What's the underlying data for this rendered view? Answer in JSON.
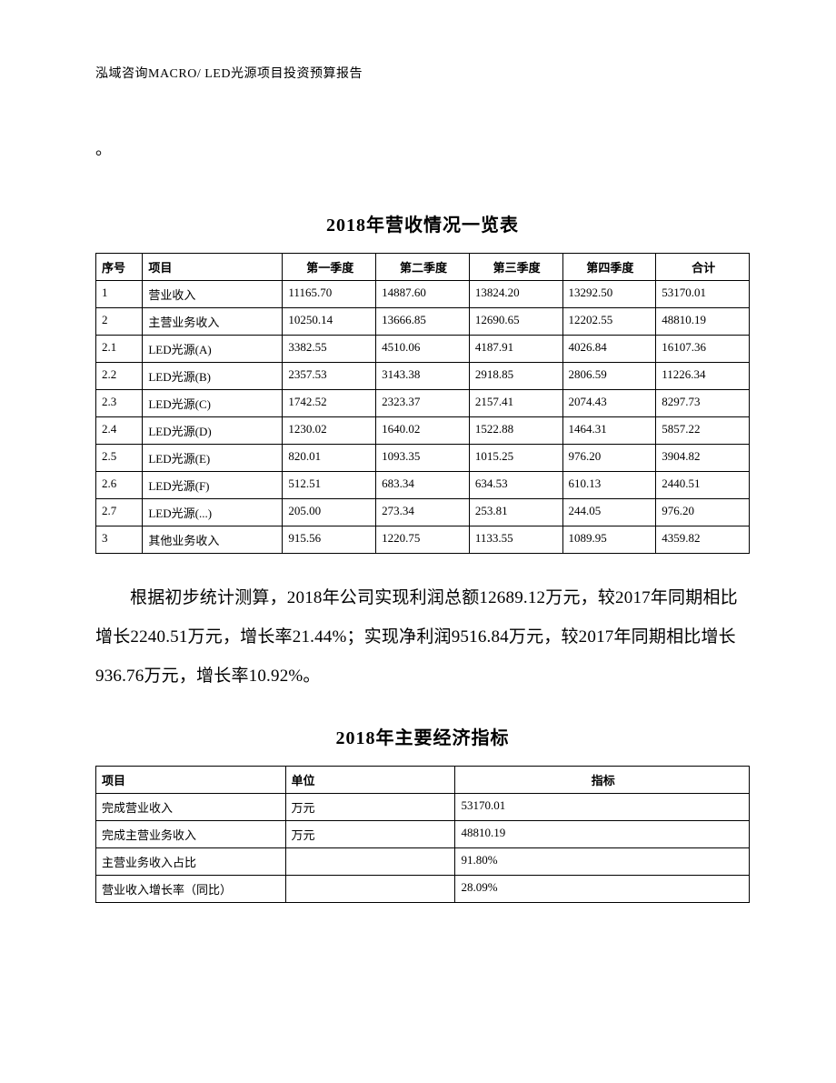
{
  "header": "泓域咨询MACRO/   LED光源项目投资预算报告",
  "stray": "。",
  "table1": {
    "title": "2018年营收情况一览表",
    "columns": [
      "序号",
      "项目",
      "第一季度",
      "第二季度",
      "第三季度",
      "第四季度",
      "合计"
    ],
    "rows": [
      [
        "1",
        "营业收入",
        "11165.70",
        "14887.60",
        "13824.20",
        "13292.50",
        "53170.01"
      ],
      [
        "2",
        "主营业务收入",
        "10250.14",
        "13666.85",
        "12690.65",
        "12202.55",
        "48810.19"
      ],
      [
        "2.1",
        "LED光源(A)",
        "3382.55",
        "4510.06",
        "4187.91",
        "4026.84",
        "16107.36"
      ],
      [
        "2.2",
        "LED光源(B)",
        "2357.53",
        "3143.38",
        "2918.85",
        "2806.59",
        "11226.34"
      ],
      [
        "2.3",
        "LED光源(C)",
        "1742.52",
        "2323.37",
        "2157.41",
        "2074.43",
        "8297.73"
      ],
      [
        "2.4",
        "LED光源(D)",
        "1230.02",
        "1640.02",
        "1522.88",
        "1464.31",
        "5857.22"
      ],
      [
        "2.5",
        "LED光源(E)",
        "820.01",
        "1093.35",
        "1015.25",
        "976.20",
        "3904.82"
      ],
      [
        "2.6",
        "LED光源(F)",
        "512.51",
        "683.34",
        "634.53",
        "610.13",
        "2440.51"
      ],
      [
        "2.7",
        "LED光源(...)",
        "205.00",
        "273.34",
        "253.81",
        "244.05",
        "976.20"
      ],
      [
        "3",
        "其他业务收入",
        "915.56",
        "1220.75",
        "1133.55",
        "1089.95",
        "4359.82"
      ]
    ],
    "header_align": [
      "left",
      "left",
      "center",
      "center",
      "center",
      "center",
      "center"
    ]
  },
  "paragraph": "根据初步统计测算，2018年公司实现利润总额12689.12万元，较2017年同期相比增长2240.51万元，增长率21.44%；实现净利润9516.84万元，较2017年同期相比增长936.76万元，增长率10.92%。",
  "table2": {
    "title": "2018年主要经济指标",
    "columns": [
      "项目",
      "单位",
      "指标"
    ],
    "rows": [
      [
        "完成营业收入",
        "万元",
        "53170.01"
      ],
      [
        "完成主营业务收入",
        "万元",
        "48810.19"
      ],
      [
        "主营业务收入占比",
        "",
        "91.80%"
      ],
      [
        "营业收入增长率（同比）",
        "",
        "28.09%"
      ]
    ]
  },
  "style": {
    "background": "#ffffff",
    "text_color": "#000000",
    "border_color": "#000000",
    "body_font_size_pt": 14,
    "header_font_size_pt": 11,
    "table_font_size_pt": 10,
    "title_font_size_pt": 15
  }
}
